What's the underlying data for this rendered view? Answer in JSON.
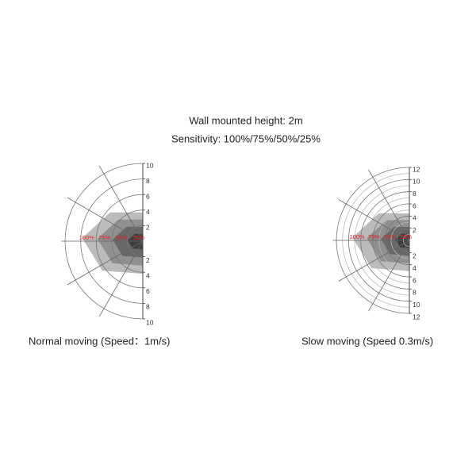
{
  "header": {
    "line1": "Wall mounted  height: 2m",
    "line2": "Sensitivity: 100%/75%/50%/25%"
  },
  "diagrams": [
    {
      "upper_labels": [
        "10",
        "8",
        "6",
        "4",
        "2"
      ],
      "lower_labels": [
        "2",
        "4",
        "6",
        "8",
        "10"
      ],
      "sensitivity_labels": [
        "100%",
        "75%",
        "50%",
        "25%"
      ],
      "caption": "Normal moving (Speed：1m/s)"
    },
    {
      "upper_labels": [
        "12",
        "10",
        "8",
        "6",
        "4",
        "2"
      ],
      "lower_labels": [
        "2",
        "4",
        "6",
        "8",
        "10",
        "12"
      ],
      "sensitivity_labels": [
        "100%",
        "75%",
        "50%",
        "25%"
      ],
      "caption": "Slow moving (Speed 0.3m/s)"
    }
  ]
}
